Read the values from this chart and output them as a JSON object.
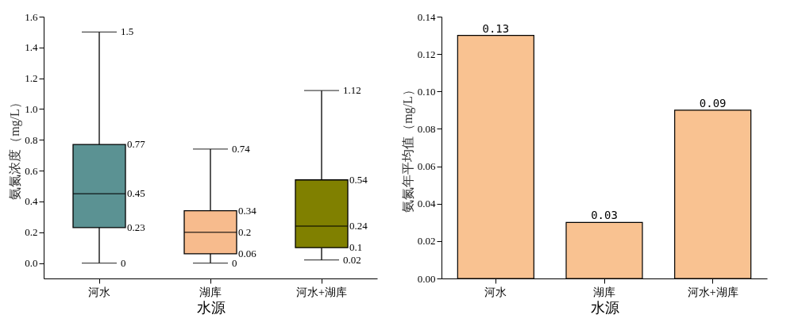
{
  "chart_data": [
    {
      "type": "box",
      "xlabel": "水源",
      "ylabel": "氨氮浓度（mg/L）",
      "categories": [
        "河水",
        "湖库",
        "河水+湖库"
      ],
      "boxes": [
        {
          "low": 0,
          "q1": 0.23,
          "median": 0.45,
          "q3": 0.77,
          "high": 1.5
        },
        {
          "low": 0,
          "q1": 0.06,
          "median": 0.2,
          "q3": 0.34,
          "high": 0.74
        },
        {
          "low": 0.02,
          "q1": 0.1,
          "median": 0.24,
          "q3": 0.54,
          "high": 1.12
        }
      ],
      "colors": [
        "#5b9293",
        "#f7bb8d",
        "#808000"
      ],
      "ylim": [
        -0.1,
        1.6
      ],
      "yticks": [
        {
          "value": 0,
          "label": "0.0"
        },
        0.2,
        0.4,
        0.6,
        0.8,
        {
          "value": 1,
          "label": "1.0"
        },
        1.2,
        1.4,
        1.6
      ],
      "annotations": [
        {
          "text": "1.5",
          "x": "河水",
          "y": 1.5
        },
        {
          "text": "0.77",
          "x": "河水",
          "y": 0.77
        },
        {
          "text": "0.45",
          "x": "河水",
          "y": 0.45
        },
        {
          "text": "0.23",
          "x": "河水",
          "y": 0.23
        },
        {
          "text": "0",
          "x": "河水",
          "y": 0
        },
        {
          "text": "0.74",
          "x": "湖库",
          "y": 0.74
        },
        {
          "text": "0.34",
          "x": "湖库",
          "y": 0.34
        },
        {
          "text": "0.2",
          "x": "湖库",
          "y": 0.2
        },
        {
          "text": "0.06",
          "x": "湖库",
          "y": 0.06
        },
        {
          "text": "0",
          "x": "湖库",
          "y": 0
        },
        {
          "text": "1.12",
          "x": "河水+湖库",
          "y": 1.12
        },
        {
          "text": "0.54",
          "x": "河水+湖库",
          "y": 0.54
        },
        {
          "text": "0.24",
          "x": "河水+湖库",
          "y": 0.24
        },
        {
          "text": "0.1",
          "x": "河水+湖库",
          "y": 0.1
        },
        {
          "text": "0.02",
          "x": "河水+湖库",
          "y": 0.02
        }
      ],
      "grid": false
    },
    {
      "type": "bar",
      "xlabel": "水源",
      "ylabel": "氨氮年平均值（mg/L）",
      "categories": [
        "河水",
        "湖库",
        "河水+湖库"
      ],
      "values": [
        0.13,
        0.03,
        0.09
      ],
      "color": "#f9c291",
      "ylim": [
        0,
        0.14
      ],
      "yticks": [
        {
          "value": 0,
          "label": "0.00"
        },
        0.02,
        0.04,
        0.06,
        0.08,
        {
          "value": 0.1,
          "label": "0.10"
        },
        0.12,
        0.14
      ],
      "data_labels": true,
      "grid": false
    }
  ]
}
